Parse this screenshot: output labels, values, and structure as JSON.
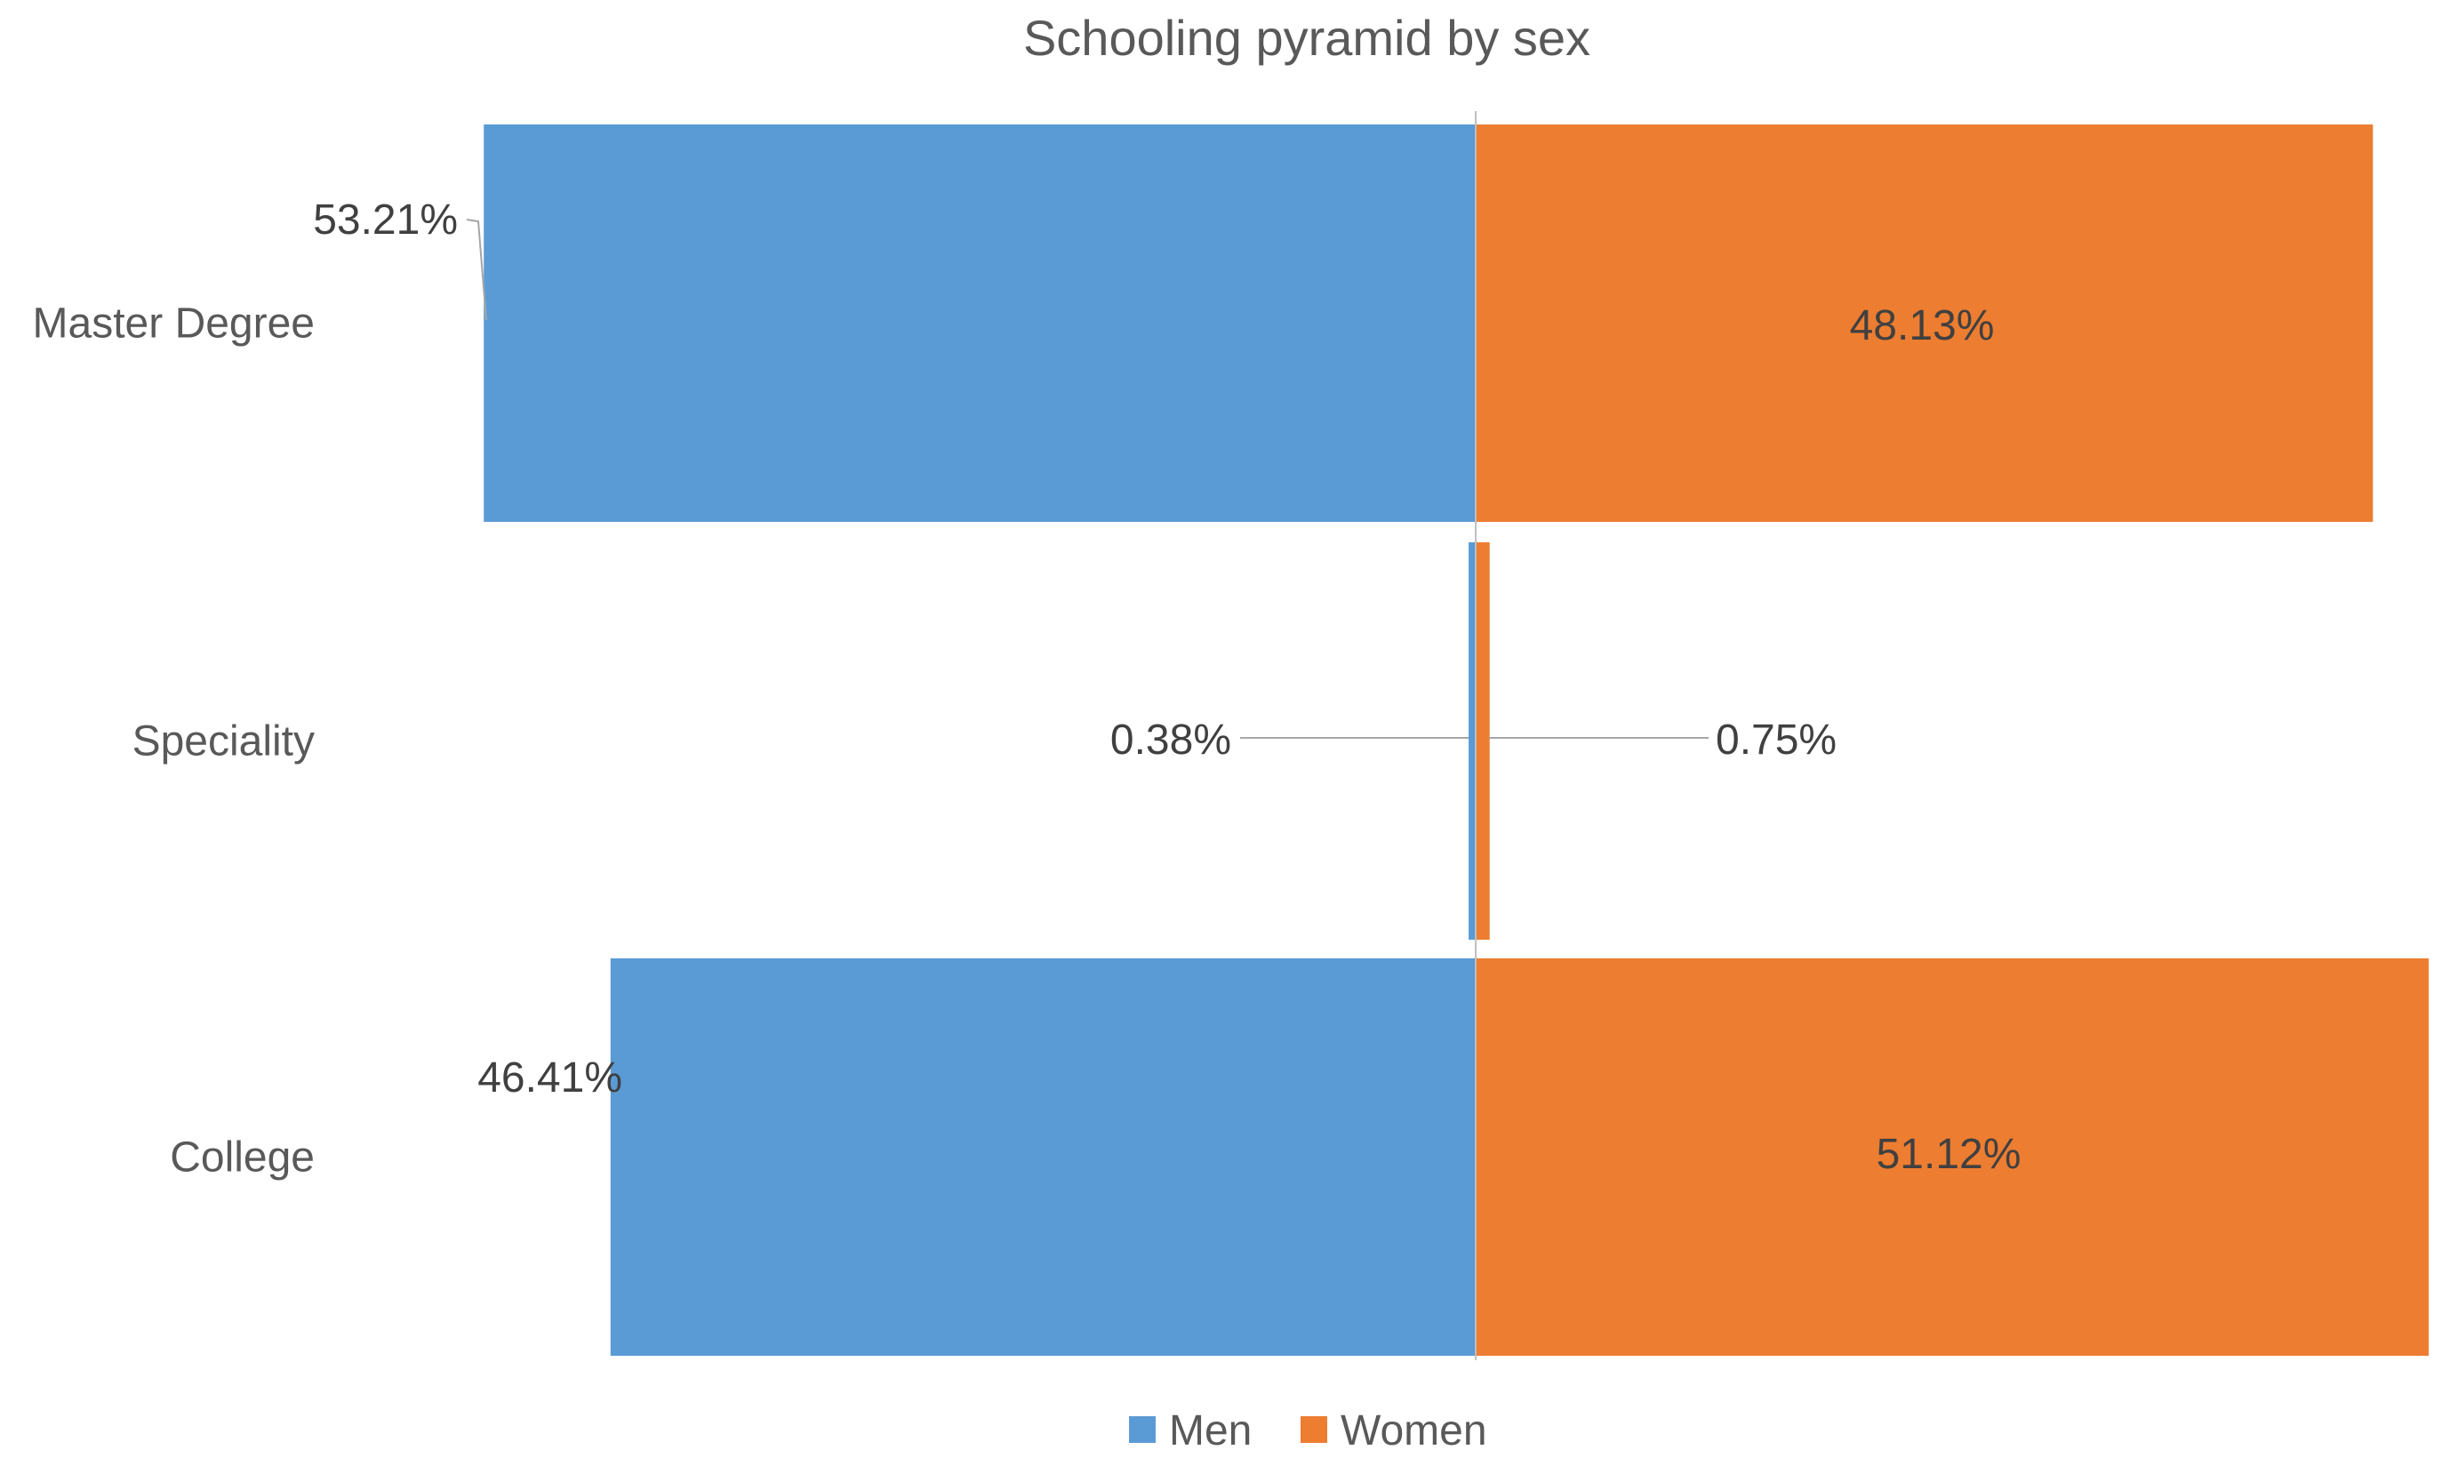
{
  "chart_data": {
    "type": "bar",
    "orientation": "horizontal-diverging",
    "title": "Schooling pyramid by sex",
    "categories": [
      "Master Degree",
      "Speciality",
      "College"
    ],
    "series": [
      {
        "name": "Men",
        "values": [
          53.21,
          0.38,
          46.41
        ],
        "labels": [
          "53.21%",
          "0.38%",
          "46.41%"
        ],
        "color": "#5B9BD5",
        "side": "left"
      },
      {
        "name": "Women",
        "values": [
          48.13,
          0.75,
          51.12
        ],
        "labels": [
          "48.13%",
          "0.75%",
          "51.12%"
        ],
        "color": "#ED7D31",
        "side": "right"
      }
    ],
    "xlim": [
      -55,
      55
    ],
    "value_unit": "%",
    "grid": false,
    "legend_position": "bottom"
  },
  "colors": {
    "text": "#595959",
    "label": "#404040",
    "axis": "#BFBFBF",
    "leader": "#A6A6A6"
  }
}
